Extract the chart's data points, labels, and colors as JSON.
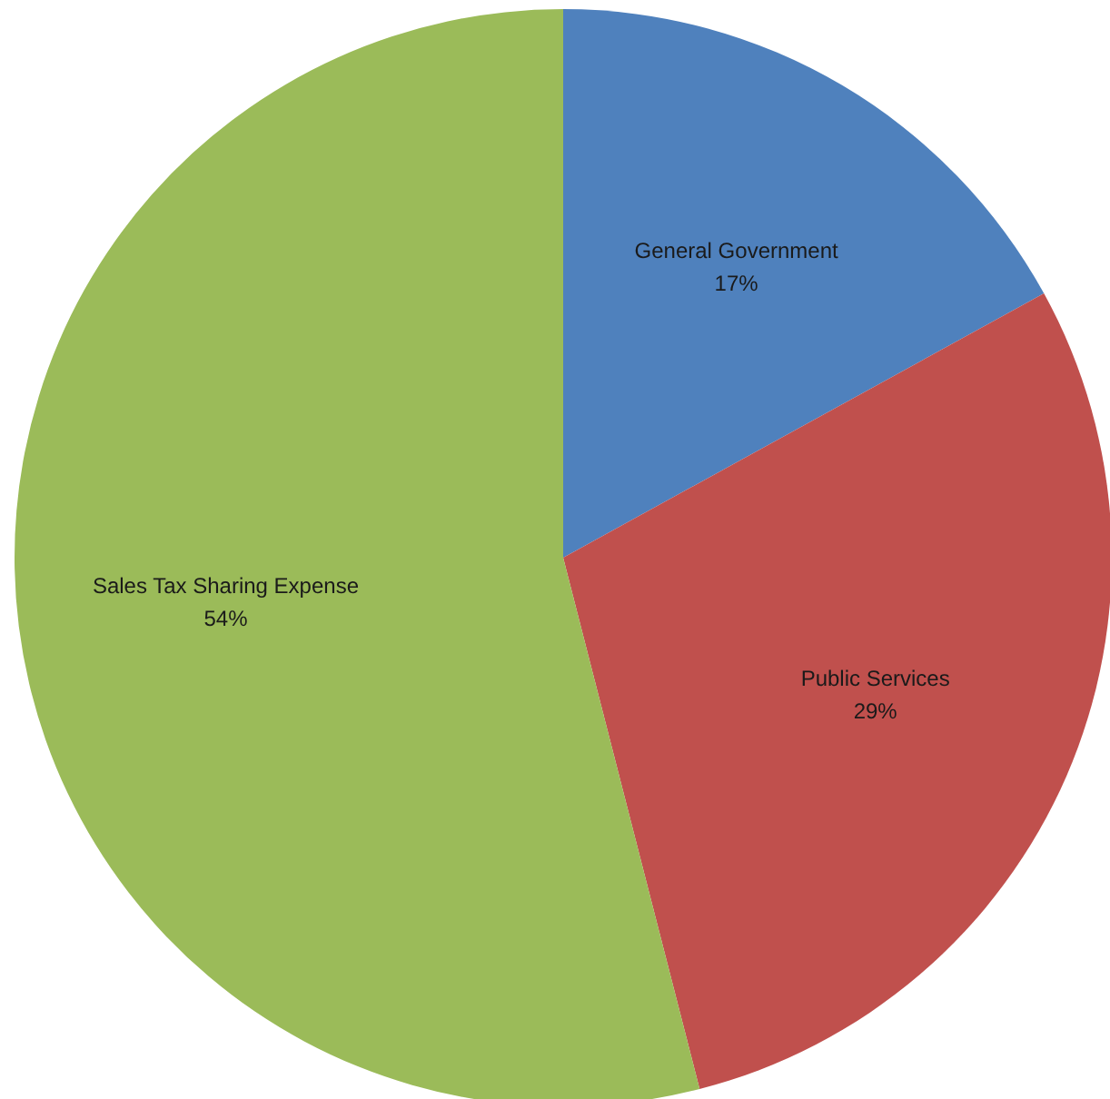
{
  "chart_data": {
    "type": "pie",
    "categories": [
      "General Government",
      "Public Services",
      "Sales Tax Sharing Expense"
    ],
    "values": [
      17,
      29,
      54
    ],
    "colors": [
      "#4f81bd",
      "#c0504d",
      "#9bbb59"
    ],
    "value_labels": [
      "17%",
      "29%",
      "54%"
    ],
    "legend": false
  }
}
